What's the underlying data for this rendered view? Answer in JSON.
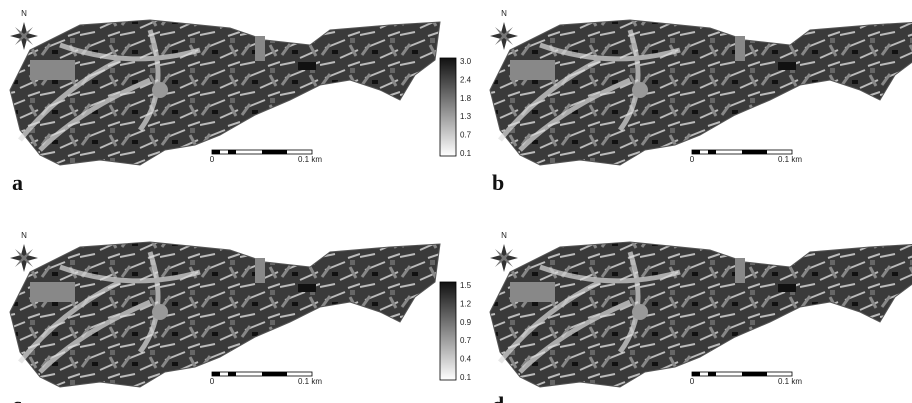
{
  "panels": [
    {
      "letter": "a",
      "north": "N",
      "scale_start": "0",
      "scale_end": "0.1 km"
    },
    {
      "letter": "b",
      "north": "N",
      "scale_start": "0",
      "scale_end": "0.1 km"
    },
    {
      "letter": "c",
      "north": "N",
      "scale_start": "0",
      "scale_end": "0.1 km"
    },
    {
      "letter": "d",
      "north": "N",
      "scale_start": "0",
      "scale_end": "0.1 km"
    }
  ],
  "legends": [
    {
      "ticks": [
        "3.0",
        "2.4",
        "1.8",
        "1.3",
        "0.7",
        "0.1"
      ]
    },
    {
      "ticks": [
        "1.5",
        "1.2",
        "0.9",
        "0.7",
        "0.4",
        "0.1"
      ]
    }
  ]
}
